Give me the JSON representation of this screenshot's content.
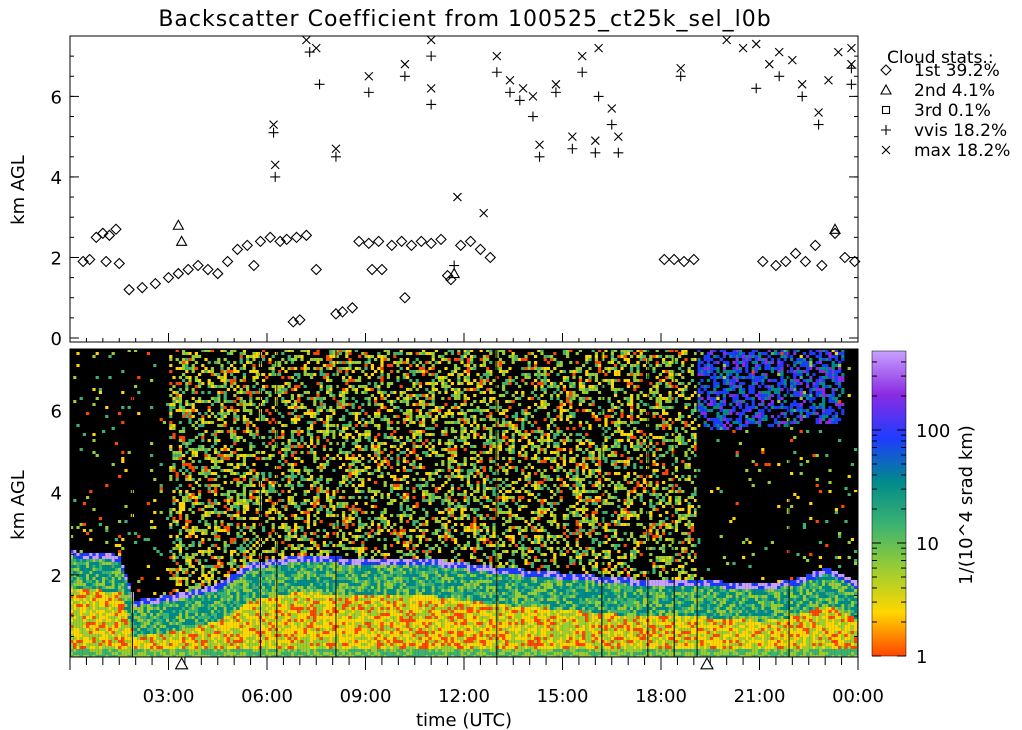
{
  "chart_data": [
    {
      "type": "scatter",
      "title": "Backscatter Coefficient from 100525_ct25k_sel_l0b",
      "ylabel": "km AGL",
      "ylim": [
        0,
        7.5
      ],
      "xlim_hours": [
        0,
        24
      ],
      "y_ticks": [
        "0",
        "2",
        "4",
        "6"
      ],
      "legend": {
        "title": "Cloud stats.:",
        "placement": "right",
        "entries": [
          {
            "symbol": "diamond",
            "label": "1st 39.2%"
          },
          {
            "symbol": "triangle",
            "label": "2nd  4.1%"
          },
          {
            "symbol": "square",
            "label": "3rd  0.1%"
          },
          {
            "symbol": "plus",
            "label": "vvis 18.2%"
          },
          {
            "symbol": "cross",
            "label": "max 18.2%"
          }
        ]
      },
      "series": [
        {
          "symbol": "diamond",
          "points": [
            [
              0.4,
              1.9
            ],
            [
              0.6,
              1.95
            ],
            [
              0.8,
              2.5
            ],
            [
              1.0,
              2.6
            ],
            [
              1.2,
              2.55
            ],
            [
              1.4,
              2.7
            ],
            [
              1.1,
              1.9
            ],
            [
              1.5,
              1.85
            ],
            [
              1.8,
              1.2
            ],
            [
              2.2,
              1.25
            ],
            [
              2.6,
              1.35
            ],
            [
              3.0,
              1.5
            ],
            [
              3.3,
              1.6
            ],
            [
              3.6,
              1.7
            ],
            [
              3.9,
              1.8
            ],
            [
              4.2,
              1.7
            ],
            [
              4.5,
              1.6
            ],
            [
              4.8,
              1.9
            ],
            [
              5.1,
              2.2
            ],
            [
              5.4,
              2.3
            ],
            [
              5.6,
              1.8
            ],
            [
              5.8,
              2.4
            ],
            [
              6.1,
              2.5
            ],
            [
              6.4,
              2.4
            ],
            [
              6.6,
              2.45
            ],
            [
              6.9,
              2.5
            ],
            [
              7.2,
              2.55
            ],
            [
              7.5,
              1.7
            ],
            [
              6.8,
              0.4
            ],
            [
              7.0,
              0.45
            ],
            [
              8.1,
              0.6
            ],
            [
              8.3,
              0.65
            ],
            [
              8.6,
              0.75
            ],
            [
              9.2,
              1.7
            ],
            [
              9.5,
              1.7
            ],
            [
              10.2,
              1.0
            ],
            [
              8.8,
              2.4
            ],
            [
              9.1,
              2.35
            ],
            [
              9.4,
              2.4
            ],
            [
              9.8,
              2.3
            ],
            [
              10.1,
              2.4
            ],
            [
              10.4,
              2.3
            ],
            [
              10.7,
              2.4
            ],
            [
              11.0,
              2.35
            ],
            [
              11.3,
              2.45
            ],
            [
              11.6,
              1.45
            ],
            [
              11.5,
              1.55
            ],
            [
              11.9,
              2.3
            ],
            [
              12.2,
              2.4
            ],
            [
              12.5,
              2.2
            ],
            [
              12.8,
              2.0
            ],
            [
              18.1,
              1.95
            ],
            [
              18.4,
              1.95
            ],
            [
              18.7,
              1.9
            ],
            [
              19.0,
              1.95
            ],
            [
              21.1,
              1.9
            ],
            [
              21.5,
              1.8
            ],
            [
              21.8,
              1.9
            ],
            [
              22.1,
              2.1
            ],
            [
              22.4,
              1.9
            ],
            [
              22.7,
              2.3
            ],
            [
              22.9,
              1.8
            ],
            [
              23.3,
              2.6
            ],
            [
              23.6,
              2.0
            ],
            [
              23.9,
              1.9
            ]
          ]
        },
        {
          "symbol": "triangle",
          "points": [
            [
              3.3,
              2.8
            ],
            [
              3.4,
              2.4
            ],
            [
              11.7,
              1.6
            ],
            [
              23.3,
              2.7
            ]
          ]
        },
        {
          "symbol": "plus",
          "points": [
            [
              6.2,
              5.1
            ],
            [
              6.25,
              4.0
            ],
            [
              7.3,
              7.1
            ],
            [
              7.6,
              6.3
            ],
            [
              8.1,
              4.5
            ],
            [
              9.1,
              6.1
            ],
            [
              10.2,
              6.5
            ],
            [
              11.0,
              7.0
            ],
            [
              11.0,
              5.8
            ],
            [
              11.7,
              1.8
            ],
            [
              13.0,
              6.6
            ],
            [
              13.4,
              6.1
            ],
            [
              13.7,
              5.9
            ],
            [
              14.1,
              5.5
            ],
            [
              14.3,
              4.5
            ],
            [
              14.8,
              6.1
            ],
            [
              15.3,
              4.7
            ],
            [
              15.6,
              6.6
            ],
            [
              16.0,
              4.6
            ],
            [
              16.1,
              6.0
            ],
            [
              16.5,
              5.3
            ],
            [
              16.7,
              4.6
            ],
            [
              18.6,
              6.5
            ],
            [
              20.9,
              6.2
            ],
            [
              21.6,
              6.5
            ],
            [
              22.3,
              6.0
            ],
            [
              22.8,
              5.3
            ],
            [
              23.8,
              6.7
            ],
            [
              23.8,
              6.3
            ]
          ]
        },
        {
          "symbol": "cross",
          "points": [
            [
              6.2,
              5.3
            ],
            [
              6.25,
              4.3
            ],
            [
              7.2,
              7.4
            ],
            [
              7.5,
              7.2
            ],
            [
              8.1,
              4.7
            ],
            [
              9.1,
              6.5
            ],
            [
              10.2,
              6.8
            ],
            [
              11.0,
              7.4
            ],
            [
              11.0,
              6.2
            ],
            [
              11.8,
              3.5
            ],
            [
              12.6,
              3.1
            ],
            [
              13.0,
              7.0
            ],
            [
              13.4,
              6.4
            ],
            [
              13.8,
              6.2
            ],
            [
              14.1,
              6.0
            ],
            [
              14.3,
              4.8
            ],
            [
              14.8,
              6.3
            ],
            [
              15.3,
              5.0
            ],
            [
              15.6,
              7.0
            ],
            [
              16.0,
              4.9
            ],
            [
              16.1,
              7.2
            ],
            [
              16.5,
              5.7
            ],
            [
              16.7,
              5.0
            ],
            [
              18.6,
              6.7
            ],
            [
              20.0,
              7.4
            ],
            [
              20.5,
              7.2
            ],
            [
              20.9,
              7.3
            ],
            [
              21.3,
              6.8
            ],
            [
              21.6,
              7.1
            ],
            [
              22.0,
              6.9
            ],
            [
              22.3,
              6.3
            ],
            [
              22.8,
              5.6
            ],
            [
              23.1,
              6.4
            ],
            [
              23.4,
              7.1
            ],
            [
              23.8,
              7.2
            ],
            [
              23.8,
              6.8
            ]
          ]
        }
      ]
    },
    {
      "type": "heatmap",
      "xlabel": "time (UTC)",
      "ylabel": "km AGL",
      "ylim": [
        0,
        7.5
      ],
      "xlim_hours": [
        0,
        24
      ],
      "x_ticks": [
        "03:00",
        "06:00",
        "09:00",
        "12:00",
        "15:00",
        "18:00",
        "21:00",
        "00:00"
      ],
      "y_ticks": [
        "2",
        "4",
        "6"
      ],
      "colorbar": {
        "label": "1/(10^4 srad km)",
        "scale": "log",
        "range": [
          1,
          500
        ],
        "ticks": [
          "1",
          "10",
          "100"
        ],
        "colors": [
          "#ff4500",
          "#ffd700",
          "#9acd32",
          "#3cb371",
          "#008b8b",
          "#1e3cff",
          "#8a2be2",
          "#c8a0ff"
        ]
      },
      "markers": {
        "symbol": "triangle",
        "times_hours": [
          3.4,
          19.4
        ]
      },
      "features": {
        "boundary_layer_top_km": [
          [
            0,
            2.6
          ],
          [
            1.5,
            2.5
          ],
          [
            2.0,
            1.4
          ],
          [
            3.5,
            1.6
          ],
          [
            4.5,
            1.8
          ],
          [
            5.5,
            2.3
          ],
          [
            7.0,
            2.5
          ],
          [
            9.0,
            2.4
          ],
          [
            11.0,
            2.4
          ],
          [
            13.0,
            2.2
          ],
          [
            17.5,
            1.9
          ],
          [
            19.0,
            1.9
          ],
          [
            21.0,
            1.8
          ],
          [
            22.0,
            1.9
          ],
          [
            23.0,
            2.2
          ],
          [
            24.0,
            1.8
          ]
        ],
        "upper_cloud_band": {
          "start_hours": 19.0,
          "end_hours": 23.5,
          "top_km": 7.5,
          "bottom_km": 5.5
        },
        "low_noise_region_hours": [
          [
            19.0,
            24.0
          ]
        ]
      }
    }
  ]
}
